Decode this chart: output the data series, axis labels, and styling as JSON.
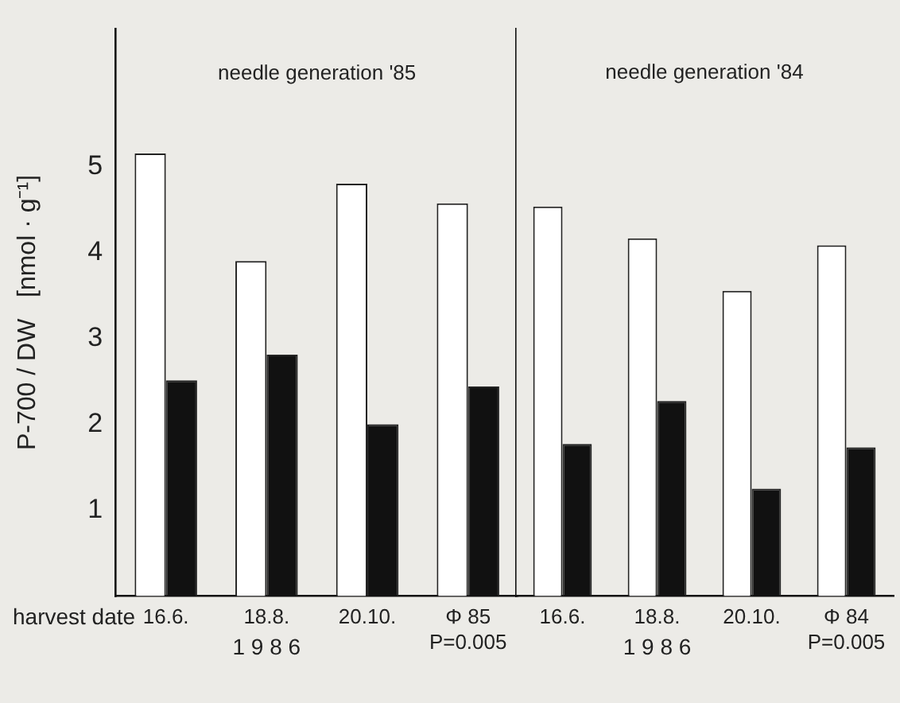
{
  "chart_data": [
    {
      "type": "bar",
      "title": "needle generation '85",
      "ylabel": "P-700 / DW   [nmol · g⁻¹]",
      "xlabel": "harvest date",
      "categories": [
        "16.6.",
        "18.8.",
        "20.10.",
        "Φ 85\nP=0.005"
      ],
      "series": [
        {
          "color": "#ffffff",
          "values": [
            5.15,
            3.9,
            4.8,
            4.57
          ]
        },
        {
          "color": "#111111",
          "values": [
            2.51,
            2.81,
            2.0,
            2.44
          ]
        }
      ],
      "annotations": [
        "1 9 8 6"
      ],
      "ylim": [
        0,
        6.6
      ],
      "yticks": [
        1,
        2,
        3,
        4,
        5
      ],
      "grid": false,
      "legend": false
    },
    {
      "type": "bar",
      "title": "needle generation '84",
      "categories": [
        "16.6.",
        "18.8.",
        "20.10.",
        "Φ 84\nP=0.005"
      ],
      "series": [
        {
          "color": "#ffffff",
          "values": [
            4.53,
            4.16,
            3.55,
            4.08
          ]
        },
        {
          "color": "#111111",
          "values": [
            1.77,
            2.27,
            1.25,
            1.73
          ]
        }
      ],
      "annotations": [
        "1 9 8 6"
      ],
      "ylim": [
        0,
        6.6
      ],
      "yticks": [
        1,
        2,
        3,
        4,
        5
      ],
      "grid": false,
      "legend": false,
      "tick_labels": "x"
    }
  ]
}
